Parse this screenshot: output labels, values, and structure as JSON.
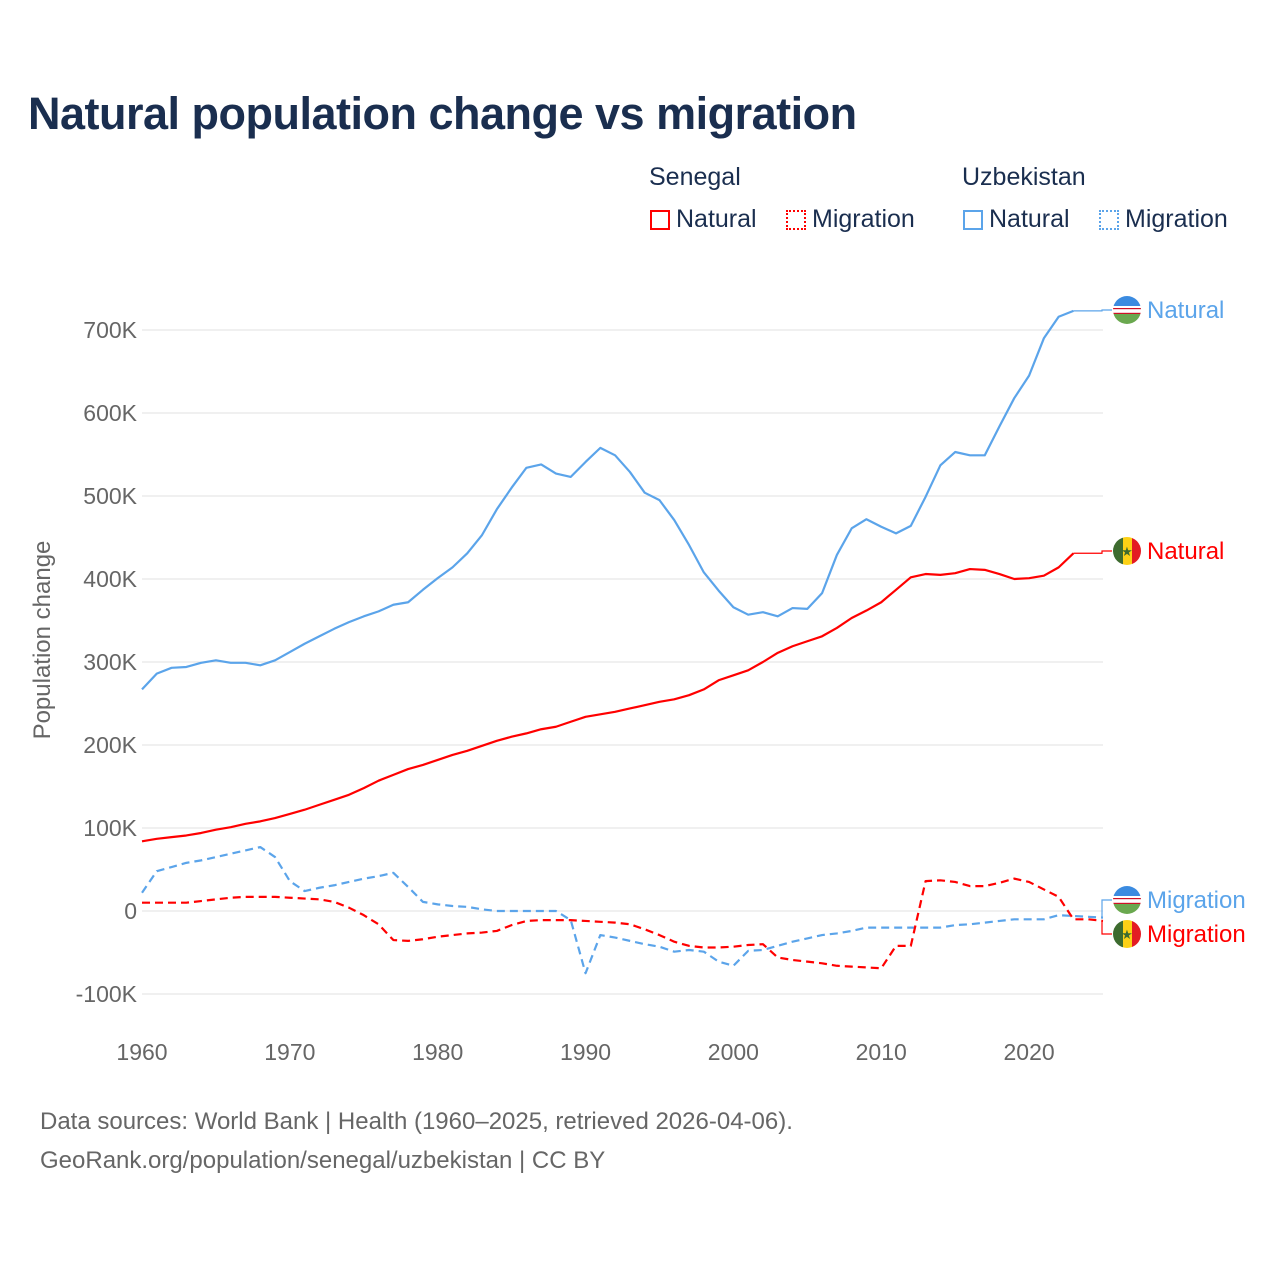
{
  "title": "Natural population change vs migration",
  "legend": {
    "groups": [
      {
        "name": "Senegal",
        "items": [
          "Natural",
          "Migration"
        ],
        "color": "#ff0000"
      },
      {
        "name": "Uzbekistan",
        "items": [
          "Natural",
          "Migration"
        ],
        "color": "#5ba4ea"
      }
    ]
  },
  "footer": {
    "line1": "Data sources: World Bank | Health (1960–2025, retrieved 2026-04-06).",
    "line2": "GeoRank.org/population/senegal/uzbekistan | CC BY"
  },
  "chart_data": {
    "type": "line",
    "title": "Natural population change vs migration",
    "xlabel": "",
    "ylabel": "Population change",
    "units": "thousands",
    "xlim": [
      1960,
      2025
    ],
    "ylim": [
      -100,
      700
    ],
    "grid": true,
    "x_ticks": [
      "1960",
      "1970",
      "1980",
      "1990",
      "2000",
      "2010",
      "2020"
    ],
    "y_ticks": [
      "-100K",
      "0",
      "100K",
      "200K",
      "300K",
      "400K",
      "500K",
      "600K",
      "700K"
    ],
    "series": [
      {
        "name": "Uzbekistan Natural",
        "label": "Natural",
        "country": "Uzbekistan",
        "color": "#5ba4ea",
        "dashed": false,
        "start": 1960,
        "values": [
          267,
          286,
          293,
          294,
          299,
          302,
          299,
          299,
          296,
          302,
          312,
          322,
          331,
          340,
          348,
          355,
          361,
          369,
          372,
          387,
          401,
          414,
          431,
          453,
          484,
          510,
          534,
          538,
          527,
          523,
          541,
          558,
          549,
          529,
          504,
          495,
          471,
          441,
          408,
          386,
          366,
          357,
          360,
          355,
          365,
          364,
          383,
          429,
          461,
          472,
          463,
          455,
          464,
          499,
          537,
          553,
          549,
          549,
          584,
          618,
          645,
          690,
          716,
          723
        ]
      },
      {
        "name": "Senegal Natural",
        "label": "Natural",
        "country": "Senegal",
        "color": "#ff0000",
        "dashed": false,
        "start": 1960,
        "values": [
          84,
          87,
          89,
          91,
          94,
          98,
          101,
          105,
          108,
          112,
          117,
          122,
          128,
          134,
          140,
          148,
          157,
          164,
          171,
          176,
          182,
          188,
          193,
          199,
          205,
          210,
          214,
          219,
          222,
          228,
          234,
          237,
          240,
          244,
          248,
          252,
          255,
          260,
          267,
          278,
          284,
          290,
          300,
          311,
          319,
          325,
          331,
          341,
          353,
          362,
          372,
          387,
          402,
          406,
          405,
          407,
          412,
          411,
          406,
          400,
          401,
          404,
          414,
          431
        ]
      },
      {
        "name": "Uzbekistan Migration",
        "label": "Migration",
        "country": "Uzbekistan",
        "color": "#5ba4ea",
        "dashed": true,
        "start": 1960,
        "values": [
          22,
          48,
          53,
          58,
          61,
          65,
          69,
          73,
          77,
          65,
          36,
          24,
          28,
          31,
          35,
          39,
          42,
          46,
          29,
          11,
          8,
          6,
          5,
          2,
          0,
          0,
          0,
          0,
          0,
          -11,
          -75,
          -29,
          -32,
          -36,
          -40,
          -43,
          -49,
          -47,
          -49,
          -61,
          -66,
          -48,
          -47,
          -42,
          -37,
          -33,
          -29,
          -27,
          -24,
          -20,
          -20,
          -20,
          -20,
          -20,
          -20,
          -17,
          -16,
          -14,
          -12,
          -10,
          -10,
          -10,
          -5,
          -6,
          -7,
          -8
        ]
      },
      {
        "name": "Senegal Migration",
        "label": "Migration",
        "country": "Senegal",
        "color": "#ff0000",
        "dashed": true,
        "start": 1960,
        "values": [
          10,
          10,
          10,
          10,
          12,
          14,
          16,
          17,
          17,
          17,
          16,
          15,
          14,
          11,
          4,
          -5,
          -16,
          -35,
          -36,
          -34,
          -31,
          -29,
          -27,
          -26,
          -24,
          -17,
          -12,
          -11,
          -11,
          -11,
          -12,
          -13,
          -14,
          -16,
          -22,
          -29,
          -37,
          -42,
          -44,
          -44,
          -43,
          -41,
          -40,
          -56,
          -59,
          -61,
          -63,
          -66,
          -67,
          -68,
          -69,
          -42,
          -42,
          36,
          37,
          35,
          30,
          30,
          34,
          39,
          35,
          26,
          17,
          -10,
          -10,
          -12
        ]
      }
    ]
  }
}
